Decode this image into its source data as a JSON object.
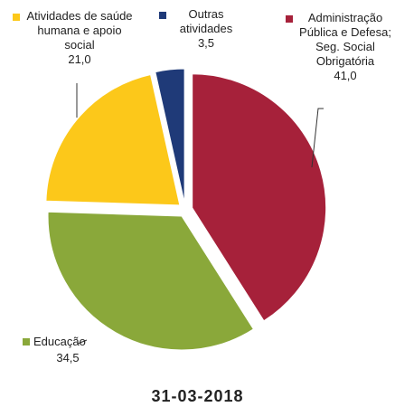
{
  "chart_data": {
    "type": "pie",
    "title": "31-03-2018",
    "categories": [
      "Administração Pública e Defesa; Seg. Social Obrigatória",
      "Educação",
      "Atividades de saúde humana e apoio social",
      "Outras atividades"
    ],
    "values": [
      41.0,
      34.5,
      21.0,
      3.5
    ],
    "value_labels": [
      "41,0",
      "34,5",
      "21,0",
      "3,5"
    ],
    "colors": [
      "#a6213a",
      "#8aa83a",
      "#fcc81a",
      "#1f3a78"
    ]
  }
}
